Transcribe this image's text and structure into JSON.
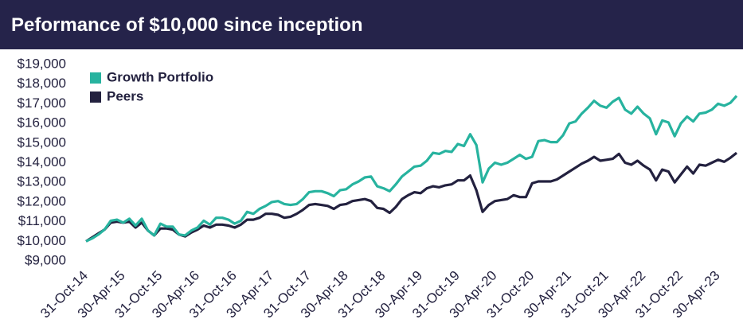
{
  "chart_data": {
    "type": "line",
    "title": "Peformance of $10,000 since inception",
    "legend": "upper left",
    "categories": [
      "31-Oct-14",
      null,
      null,
      null,
      null,
      null,
      "30-Apr-15",
      null,
      null,
      null,
      null,
      null,
      "31-Oct-15",
      null,
      null,
      null,
      null,
      null,
      "30-Apr-16",
      null,
      null,
      null,
      null,
      null,
      "31-Oct-16",
      null,
      null,
      null,
      null,
      null,
      "30-Apr-17",
      null,
      null,
      null,
      null,
      null,
      "31-Oct-17",
      null,
      null,
      null,
      null,
      null,
      "30-Apr-18",
      null,
      null,
      null,
      null,
      null,
      "31-Oct-18",
      null,
      null,
      null,
      null,
      null,
      "30-Apr-19",
      null,
      null,
      null,
      null,
      null,
      "31-Oct-19",
      null,
      null,
      null,
      null,
      null,
      "30-Apr-20",
      null,
      null,
      null,
      null,
      null,
      "31-Oct-20",
      null,
      null,
      null,
      null,
      null,
      "30-Apr-21",
      null,
      null,
      null,
      null,
      null,
      "31-Oct-21",
      null,
      null,
      null,
      null,
      null,
      "30-Apr-22",
      null,
      null,
      null,
      null,
      null,
      "31-Oct-22",
      null,
      null,
      null,
      null,
      null,
      "30-Apr-23",
      null,
      null,
      null
    ],
    "series": [
      {
        "name": "Growth Portfolio",
        "color": "#27b39f",
        "values": [
          10000,
          10150,
          10350,
          10600,
          11050,
          11100,
          10950,
          11150,
          10800,
          11150,
          10550,
          10300,
          10900,
          10750,
          10750,
          10350,
          10300,
          10550,
          10700,
          11050,
          10850,
          11200,
          11200,
          11100,
          10900,
          11050,
          11500,
          11400,
          11650,
          11800,
          12000,
          12050,
          11900,
          11850,
          11900,
          12150,
          12500,
          12550,
          12550,
          12450,
          12300,
          12600,
          12650,
          12900,
          13050,
          13250,
          13300,
          12800,
          12700,
          12550,
          12900,
          13300,
          13550,
          13800,
          13850,
          14100,
          14500,
          14450,
          14600,
          14550,
          14950,
          14850,
          15450,
          14900,
          13000,
          13700,
          14000,
          13900,
          14000,
          14200,
          14400,
          14200,
          14300,
          15100,
          15150,
          15050,
          15050,
          15400,
          16000,
          16100,
          16500,
          16800,
          17150,
          16900,
          16800,
          17100,
          17300,
          16700,
          16500,
          16850,
          16500,
          16250,
          15450,
          16150,
          16050,
          15350,
          16000,
          16350,
          16100,
          16500,
          16550,
          16700,
          17000,
          16900,
          17050,
          17400
        ]
      },
      {
        "name": "Peers",
        "color": "#23213f",
        "values": [
          10000,
          10200,
          10400,
          10600,
          10950,
          11000,
          10950,
          11000,
          10700,
          10950,
          10550,
          10300,
          10650,
          10650,
          10600,
          10350,
          10250,
          10450,
          10600,
          10800,
          10700,
          10850,
          10850,
          10800,
          10700,
          10850,
          11100,
          11100,
          11200,
          11400,
          11400,
          11350,
          11200,
          11250,
          11400,
          11600,
          11850,
          11900,
          11850,
          11800,
          11650,
          11850,
          11900,
          12050,
          12100,
          12150,
          12050,
          11700,
          11650,
          11450,
          11750,
          12150,
          12350,
          12500,
          12450,
          12700,
          12800,
          12750,
          12850,
          12900,
          13100,
          13100,
          13350,
          12600,
          11500,
          11850,
          12050,
          12100,
          12150,
          12350,
          12250,
          12250,
          12950,
          13050,
          13050,
          13050,
          13150,
          13350,
          13550,
          13750,
          13950,
          14100,
          14300,
          14100,
          14150,
          14200,
          14450,
          14000,
          13900,
          14100,
          13850,
          13650,
          13100,
          13650,
          13550,
          13000,
          13400,
          13800,
          13450,
          13900,
          13850,
          14000,
          14150,
          14050,
          14250,
          14500
        ]
      }
    ],
    "ylim": [
      9000,
      19000
    ],
    "yticks": [
      {
        "value": 9000,
        "label": "$9,000"
      },
      {
        "value": 10000,
        "label": "$10,000"
      },
      {
        "value": 11000,
        "label": "$11,000"
      },
      {
        "value": 12000,
        "label": "$12,000"
      },
      {
        "value": 13000,
        "label": "$13,000"
      },
      {
        "value": 14000,
        "label": "$14,000"
      },
      {
        "value": 15000,
        "label": "$15,000"
      },
      {
        "value": 16000,
        "label": "$16,000"
      },
      {
        "value": 17000,
        "label": "$17,000"
      },
      {
        "value": 18000,
        "label": "$18,000"
      },
      {
        "value": 19000,
        "label": "$19,000"
      }
    ],
    "grid": false
  }
}
